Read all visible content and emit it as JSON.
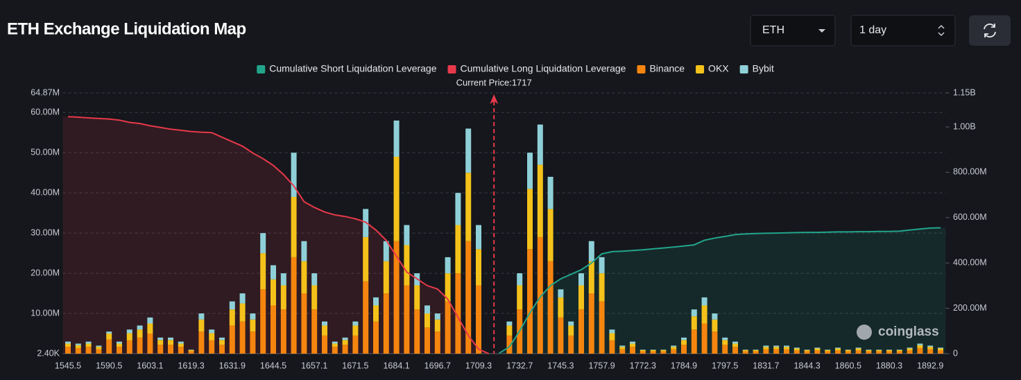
{
  "header": {
    "title": "ETH Exchange Liquidation Map",
    "symbol": "ETH",
    "period": "1 day"
  },
  "chart_data": {
    "type": "bar",
    "annotation": "Current Price:1717",
    "watermark": "coinglass",
    "categories": [
      "1545.5",
      null,
      null,
      null,
      "1590.5",
      null,
      null,
      null,
      "1603.1",
      null,
      null,
      null,
      "1619.3",
      null,
      null,
      null,
      "1631.9",
      null,
      null,
      null,
      "1644.5",
      null,
      null,
      null,
      "1657.1",
      null,
      null,
      null,
      "1671.5",
      null,
      null,
      null,
      "1684.1",
      null,
      null,
      null,
      "1696.7",
      null,
      null,
      null,
      "1709.3",
      null,
      null,
      null,
      "1732.7",
      null,
      null,
      null,
      "1745.3",
      null,
      null,
      null,
      "1757.9",
      null,
      null,
      null,
      "1772.3",
      null,
      null,
      null,
      "1784.9",
      null,
      null,
      null,
      "1797.5",
      null,
      null,
      null,
      "1831.7",
      null,
      null,
      null,
      "1844.3",
      null,
      null,
      null,
      "1860.5",
      null,
      null,
      null,
      "1880.3",
      null,
      null,
      null,
      "1892.9",
      null
    ],
    "series": [
      {
        "name": "Cumulative Short Liquidation Leverage",
        "color": "#22a58c",
        "axis": "y2",
        "values": [
          null,
          null,
          null,
          null,
          null,
          null,
          null,
          null,
          null,
          null,
          null,
          null,
          null,
          null,
          null,
          null,
          null,
          null,
          null,
          null,
          null,
          null,
          null,
          null,
          null,
          null,
          null,
          null,
          null,
          null,
          null,
          null,
          null,
          null,
          null,
          null,
          null,
          null,
          null,
          null,
          null,
          null,
          2000000.0,
          30000000.0,
          100000000.0,
          180000000.0,
          250000000.0,
          300000000.0,
          330000000.0,
          350000000.0,
          370000000.0,
          400000000.0,
          440000000.0,
          450000000.0,
          452000000.0,
          455000000.0,
          458000000.0,
          462000000.0,
          466000000.0,
          470000000.0,
          475000000.0,
          480000000.0,
          500000000.0,
          510000000.0,
          517000000.0,
          525000000.0,
          528000000.0,
          530000000.0,
          531000000.0,
          532000000.0,
          533000000.0,
          534000000.0,
          535000000.0,
          535000000.0,
          536000000.0,
          537000000.0,
          537000000.0,
          538000000.0,
          538000000.0,
          539000000.0,
          539000000.0,
          540000000.0,
          545000000.0,
          550000000.0,
          554000000.0,
          555000000.0
        ]
      },
      {
        "name": "Cumulative Long Liquidation Leverage",
        "color": "#e8394a",
        "axis": "y2",
        "values": [
          1045000000.0,
          1043000000.0,
          1040000000.0,
          1037000000.0,
          1035000000.0,
          1030000000.0,
          1020000000.0,
          1015000000.0,
          1005000000.0,
          998000000.0,
          990000000.0,
          985000000.0,
          980000000.0,
          977000000.0,
          975000000.0,
          955000000.0,
          935000000.0,
          915000000.0,
          885000000.0,
          860000000.0,
          830000000.0,
          790000000.0,
          740000000.0,
          670000000.0,
          645000000.0,
          625000000.0,
          612000000.0,
          605000000.0,
          595000000.0,
          580000000.0,
          545000000.0,
          500000000.0,
          430000000.0,
          360000000.0,
          330000000.0,
          300000000.0,
          285000000.0,
          240000000.0,
          160000000.0,
          80000000.0,
          20000000.0,
          0,
          null,
          null,
          null,
          null,
          null,
          null,
          null,
          null,
          null,
          null,
          null,
          null,
          null,
          null,
          null,
          null,
          null,
          null,
          null,
          null,
          null,
          null,
          null,
          null,
          null,
          null,
          null,
          null,
          null,
          null,
          null,
          null,
          null,
          null,
          null,
          null,
          null,
          null,
          null,
          null,
          null,
          null,
          null,
          null
        ]
      },
      {
        "name": "Binance",
        "color": "#f5850f",
        "values": [
          1700000.0,
          1400000.0,
          1700000.0,
          1100000.0,
          3500000.0,
          1700000.0,
          3300000.0,
          4000000.0,
          5000000.0,
          2200000.0,
          2200000.0,
          1700000.0,
          600000.0,
          5500000.0,
          3300000.0,
          2200000.0,
          7000000.0,
          8000000.0,
          5500000.0,
          16000000.0,
          12000000.0,
          11000000.0,
          24000000.0,
          15000000.0,
          11000000.0,
          4500000.0,
          1700000.0,
          2200000.0,
          4500000.0,
          18000000.0,
          8000000.0,
          15000000.0,
          28000000.0,
          17000000.0,
          11000000.0,
          6500000.0,
          5500000.0,
          13000000.0,
          20000000.0,
          28000000.0,
          17000000.0,
          0,
          0,
          4500000.0,
          11000000.0,
          26000000.0,
          29000000.0,
          23000000.0,
          9000000.0,
          4500000.0,
          11000000.0,
          15000000.0,
          13000000.0,
          3300000.0,
          1100000.0,
          1700000.0,
          600000.0,
          600000.0,
          600000.0,
          1100000.0,
          2200000.0,
          6000000.0,
          7500000.0,
          5500000.0,
          2200000.0,
          1700000.0,
          600000.0,
          600000.0,
          1100000.0,
          1100000.0,
          1100000.0,
          800000.0,
          600000.0,
          800000.0,
          600000.0,
          800000.0,
          600000.0,
          800000.0,
          600000.0,
          600000.0,
          600000.0,
          600000.0,
          800000.0,
          1400000.0,
          1100000.0,
          800000.0
        ]
      },
      {
        "name": "OKX",
        "color": "#f4c21a",
        "values": [
          800000.0,
          700000.0,
          800000.0,
          600000.0,
          1500000.0,
          800000.0,
          1800000.0,
          2000000.0,
          2500000.0,
          1200000.0,
          1200000.0,
          800000.0,
          300000.0,
          3000000.0,
          1800000.0,
          1200000.0,
          4000000.0,
          4500000.0,
          3000000.0,
          9000000.0,
          6500000.0,
          6000000.0,
          15000000.0,
          8000000.0,
          6000000.0,
          2500000.0,
          800000.0,
          1200000.0,
          2500000.0,
          11000000.0,
          4000000.0,
          8000000.0,
          21000000.0,
          10000000.0,
          6000000.0,
          3500000.0,
          3000000.0,
          7000000.0,
          12000000.0,
          17000000.0,
          9000000.0,
          0,
          0,
          2500000.0,
          6000000.0,
          15000000.0,
          18000000.0,
          13000000.0,
          5000000.0,
          2500000.0,
          6000000.0,
          8000000.0,
          7000000.0,
          1800000.0,
          600000.0,
          800000.0,
          300000.0,
          300000.0,
          300000.0,
          600000.0,
          1200000.0,
          3300000.0,
          4500000.0,
          3000000.0,
          1200000.0,
          800000.0,
          300000.0,
          300000.0,
          600000.0,
          600000.0,
          600000.0,
          500000.0,
          300000.0,
          500000.0,
          300000.0,
          500000.0,
          300000.0,
          500000.0,
          300000.0,
          300000.0,
          300000.0,
          300000.0,
          500000.0,
          700000.0,
          600000.0,
          500000.0
        ]
      },
      {
        "name": "Bybit",
        "color": "#8fd0d8",
        "values": [
          500000.0,
          400000.0,
          500000.0,
          300000.0,
          500000.0,
          500000.0,
          900000.0,
          1000000.0,
          1500000.0,
          600000.0,
          600000.0,
          500000.0,
          100000.0,
          1500000.0,
          900000.0,
          600000.0,
          2000000.0,
          2500000.0,
          1500000.0,
          5000000.0,
          3500000.0,
          3000000.0,
          11000000.0,
          5000000.0,
          3000000.0,
          1000000.0,
          500000.0,
          600000.0,
          1000000.0,
          7000000.0,
          2000000.0,
          5000000.0,
          9000000.0,
          5000000.0,
          3000000.0,
          2000000.0,
          1500000.0,
          4000000.0,
          8000000.0,
          11000000.0,
          6000000.0,
          0,
          0,
          1000000.0,
          3000000.0,
          9000000.0,
          10000000.0,
          8000000.0,
          2000000.0,
          1000000.0,
          3000000.0,
          5000000.0,
          4000000.0,
          900000.0,
          300000.0,
          500000.0,
          100000.0,
          100000.0,
          100000.0,
          300000.0,
          600000.0,
          1700000.0,
          2000000.0,
          1500000.0,
          600000.0,
          500000.0,
          100000.0,
          100000.0,
          300000.0,
          300000.0,
          300000.0,
          200000.0,
          100000.0,
          200000.0,
          100000.0,
          200000.0,
          100000.0,
          200000.0,
          100000.0,
          100000.0,
          100000.0,
          100000.0,
          200000.0,
          400000.0,
          300000.0,
          200000.0
        ]
      }
    ],
    "ylim": [
      2400,
      64870000
    ],
    "yticks": [
      {
        "value": 2400,
        "label": "2.40K"
      },
      {
        "value": 10000000,
        "label": "10.00M"
      },
      {
        "value": 20000000,
        "label": "20.00M"
      },
      {
        "value": 30000000,
        "label": "30.00M"
      },
      {
        "value": 40000000,
        "label": "40.00M"
      },
      {
        "value": 50000000,
        "label": "50.00M"
      },
      {
        "value": 60000000,
        "label": "60.00M"
      },
      {
        "value": 64870000,
        "label": "64.87M"
      }
    ],
    "y2lim": [
      0,
      1150000000
    ],
    "y2ticks": [
      0,
      {
        "value": 200000000,
        "label": "200.00M"
      },
      {
        "value": 400000000,
        "label": "400.00M"
      },
      {
        "value": 600000000,
        "label": "600.00M"
      },
      {
        "value": 800000000,
        "label": "800.00M"
      },
      {
        "value": 1000000000,
        "label": "1.00B"
      },
      {
        "value": 1150000000,
        "label": "1.15B"
      }
    ],
    "grid": true,
    "legend": "top"
  }
}
